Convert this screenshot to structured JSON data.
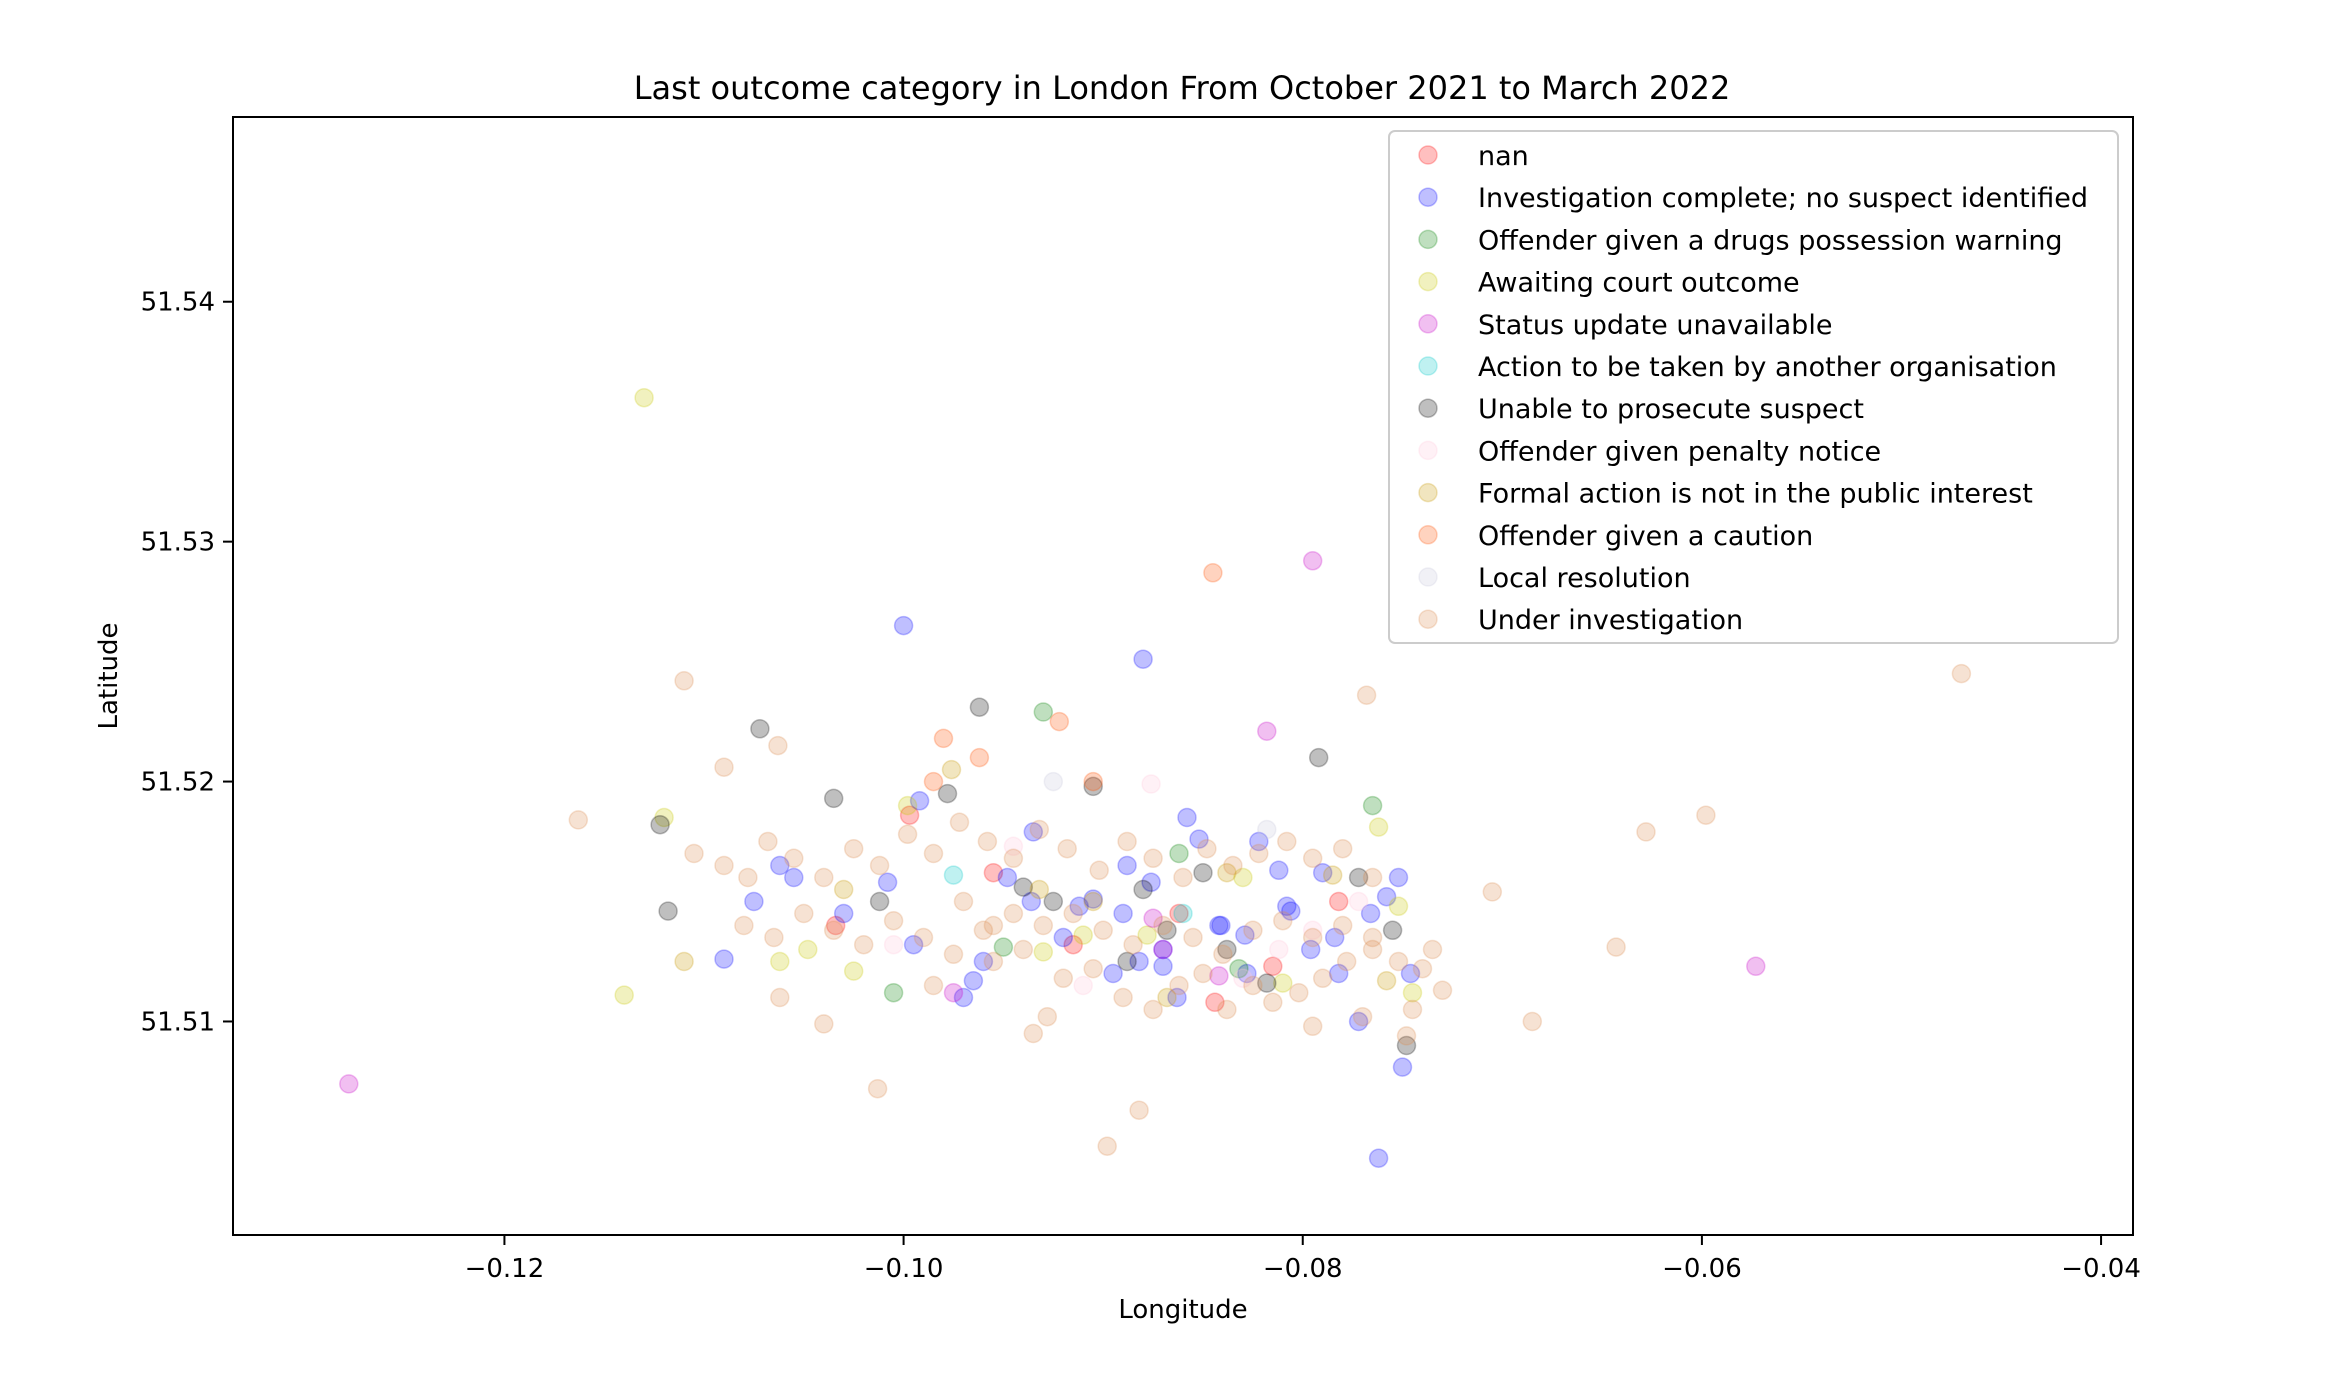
{
  "chart_data": {
    "type": "scatter",
    "title": "Last outcome category in London From October 2021 to March 2022",
    "xlabel": "Longitude",
    "ylabel": "Latitude",
    "xlim": [
      -0.1336,
      -0.0384
    ],
    "ylim": [
      51.5011,
      51.5477
    ],
    "xticks": [
      -0.12,
      -0.1,
      -0.08,
      -0.06,
      -0.04
    ],
    "xtick_labels": [
      "−0.12",
      "−0.10",
      "−0.08",
      "−0.06",
      "−0.04"
    ],
    "yticks": [
      51.51,
      51.52,
      51.53,
      51.54
    ],
    "ytick_labels": [
      "51.51",
      "51.52",
      "51.53",
      "51.54"
    ],
    "grid": false,
    "legend_position": "top-right",
    "marker_opacity": 0.25,
    "series": [
      {
        "name": "nan",
        "color": "#ff0000",
        "points": [
          [
            -0.0997,
            51.5186
          ],
          [
            -0.0915,
            51.5132
          ],
          [
            -0.0862,
            51.5145
          ],
          [
            -0.0844,
            51.5108
          ],
          [
            -0.0815,
            51.5123
          ],
          [
            -0.0782,
            51.515
          ],
          [
            -0.0955,
            51.5162
          ],
          [
            -0.1034,
            51.514
          ]
        ]
      },
      {
        "name": "Investigation complete; no suspect identified",
        "color": "#0000ff",
        "points": [
          [
            -0.1,
            51.5265
          ],
          [
            -0.088,
            51.5251
          ],
          [
            -0.0762,
            51.5043
          ],
          [
            -0.075,
            51.5081
          ],
          [
            -0.109,
            51.5126
          ],
          [
            -0.1075,
            51.515
          ],
          [
            -0.1062,
            51.5165
          ],
          [
            -0.1055,
            51.516
          ],
          [
            -0.103,
            51.5145
          ],
          [
            -0.1008,
            51.5158
          ],
          [
            -0.0995,
            51.5132
          ],
          [
            -0.097,
            51.511
          ],
          [
            -0.096,
            51.5125
          ],
          [
            -0.0948,
            51.516
          ],
          [
            -0.0935,
            51.5179
          ],
          [
            -0.092,
            51.5135
          ],
          [
            -0.0912,
            51.5148
          ],
          [
            -0.0905,
            51.5151
          ],
          [
            -0.0895,
            51.512
          ],
          [
            -0.0888,
            51.5165
          ],
          [
            -0.0882,
            51.5125
          ],
          [
            -0.0876,
            51.5158
          ],
          [
            -0.087,
            51.513
          ],
          [
            -0.0858,
            51.5185
          ],
          [
            -0.0852,
            51.5176
          ],
          [
            -0.0842,
            51.514
          ],
          [
            -0.0828,
            51.512
          ],
          [
            -0.0822,
            51.5175
          ],
          [
            -0.0812,
            51.5163
          ],
          [
            -0.0806,
            51.5146
          ],
          [
            -0.0796,
            51.513
          ],
          [
            -0.079,
            51.5162
          ],
          [
            -0.0782,
            51.512
          ],
          [
            -0.0772,
            51.51
          ],
          [
            -0.0766,
            51.5145
          ],
          [
            -0.0758,
            51.5152
          ],
          [
            -0.0752,
            51.516
          ],
          [
            -0.0746,
            51.512
          ],
          [
            -0.0936,
            51.515
          ],
          [
            -0.0992,
            51.5192
          ],
          [
            -0.0965,
            51.5117
          ],
          [
            -0.089,
            51.5145
          ],
          [
            -0.087,
            51.5123
          ],
          [
            -0.0863,
            51.511
          ],
          [
            -0.0841,
            51.514
          ],
          [
            -0.0829,
            51.5136
          ],
          [
            -0.0808,
            51.5148
          ],
          [
            -0.0784,
            51.5135
          ]
        ]
      },
      {
        "name": "Offender given a drugs possession warning",
        "color": "#008000",
        "points": [
          [
            -0.093,
            51.5229
          ],
          [
            -0.0765,
            51.519
          ],
          [
            -0.1005,
            51.5112
          ],
          [
            -0.095,
            51.5131
          ],
          [
            -0.0862,
            51.517
          ],
          [
            -0.0832,
            51.5122
          ]
        ]
      },
      {
        "name": "Awaiting court outcome",
        "color": "#c8c800",
        "points": [
          [
            -0.113,
            51.536
          ],
          [
            -0.114,
            51.5111
          ],
          [
            -0.112,
            51.5185
          ],
          [
            -0.1062,
            51.5125
          ],
          [
            -0.1048,
            51.513
          ],
          [
            -0.1025,
            51.5121
          ],
          [
            -0.0998,
            51.519
          ],
          [
            -0.093,
            51.5129
          ],
          [
            -0.0878,
            51.5136
          ],
          [
            -0.0762,
            51.5181
          ],
          [
            -0.0752,
            51.5148
          ],
          [
            -0.0745,
            51.5112
          ],
          [
            -0.083,
            51.516
          ],
          [
            -0.091,
            51.5136
          ],
          [
            -0.081,
            51.5116
          ]
        ]
      },
      {
        "name": "Status update unavailable",
        "color": "#c800c8",
        "points": [
          [
            -0.1278,
            51.5074
          ],
          [
            -0.0795,
            51.5292
          ],
          [
            -0.0818,
            51.5221
          ],
          [
            -0.0573,
            51.5123
          ],
          [
            -0.0975,
            51.5112
          ],
          [
            -0.0875,
            51.5143
          ],
          [
            -0.087,
            51.513
          ],
          [
            -0.0842,
            51.5119
          ]
        ]
      },
      {
        "name": "Action to be taken by another organisation",
        "color": "#00c8c8",
        "points": [
          [
            -0.086,
            51.5145
          ],
          [
            -0.0975,
            51.5161
          ]
        ]
      },
      {
        "name": "Unable to prosecute suspect",
        "color": "#000000",
        "points": [
          [
            -0.1122,
            51.5182
          ],
          [
            -0.1118,
            51.5146
          ],
          [
            -0.1072,
            51.5222
          ],
          [
            -0.1035,
            51.5193
          ],
          [
            -0.1012,
            51.515
          ],
          [
            -0.0978,
            51.5195
          ],
          [
            -0.0962,
            51.5231
          ],
          [
            -0.094,
            51.5156
          ],
          [
            -0.0905,
            51.5198
          ],
          [
            -0.0888,
            51.5125
          ],
          [
            -0.0868,
            51.5138
          ],
          [
            -0.085,
            51.5162
          ],
          [
            -0.0838,
            51.513
          ],
          [
            -0.0818,
            51.5116
          ],
          [
            -0.0792,
            51.521
          ],
          [
            -0.0772,
            51.516
          ],
          [
            -0.0755,
            51.5138
          ],
          [
            -0.0748,
            51.509
          ],
          [
            -0.088,
            51.5155
          ],
          [
            -0.0925,
            51.515
          ]
        ]
      },
      {
        "name": "Offender given penalty notice",
        "color": "#ffc8dc",
        "points": [
          [
            -0.0945,
            51.5173
          ],
          [
            -0.091,
            51.5115
          ],
          [
            -0.0876,
            51.5199
          ],
          [
            -0.083,
            51.5118
          ],
          [
            -0.0812,
            51.513
          ],
          [
            -0.0795,
            51.5138
          ],
          [
            -0.0772,
            51.515
          ],
          [
            -0.1005,
            51.5132
          ]
        ]
      },
      {
        "name": "Formal action is not in the public interest",
        "color": "#c89600",
        "points": [
          [
            -0.103,
            51.5155
          ],
          [
            -0.0976,
            51.5205
          ],
          [
            -0.0932,
            51.5155
          ],
          [
            -0.0868,
            51.511
          ],
          [
            -0.0785,
            51.5161
          ],
          [
            -0.0758,
            51.5117
          ],
          [
            -0.0838,
            51.5162
          ],
          [
            -0.0905,
            51.515
          ],
          [
            -0.111,
            51.5125
          ]
        ]
      },
      {
        "name": "Offender given a caution",
        "color": "#ff5000",
        "points": [
          [
            -0.0845,
            51.5287
          ],
          [
            -0.0985,
            51.52
          ],
          [
            -0.098,
            51.5218
          ],
          [
            -0.0962,
            51.521
          ],
          [
            -0.0922,
            51.5225
          ],
          [
            -0.0905,
            51.52
          ]
        ]
      },
      {
        "name": "Local resolution",
        "color": "#c8c8dc",
        "points": [
          [
            -0.0925,
            51.52
          ],
          [
            -0.0818,
            51.518
          ]
        ]
      },
      {
        "name": "Under investigation",
        "color": "#dc8c50",
        "points": [
          [
            -0.111,
            51.5242
          ],
          [
            -0.1063,
            51.5215
          ],
          [
            -0.109,
            51.5206
          ],
          [
            -0.1163,
            51.5184
          ],
          [
            -0.1013,
            51.5072
          ],
          [
            -0.0898,
            51.5048
          ],
          [
            -0.0882,
            51.5063
          ],
          [
            -0.0768,
            51.5236
          ],
          [
            -0.0705,
            51.5154
          ],
          [
            -0.0685,
            51.51
          ],
          [
            -0.0643,
            51.5131
          ],
          [
            -0.0628,
            51.5179
          ],
          [
            -0.0598,
            51.5186
          ],
          [
            -0.047,
            51.5245
          ],
          [
            -0.0748,
            51.5094
          ],
          [
            -0.104,
            51.5099
          ],
          [
            -0.1062,
            51.511
          ],
          [
            -0.0955,
            51.5125
          ],
          [
            -0.0935,
            51.5095
          ],
          [
            -0.0928,
            51.5102
          ],
          [
            -0.0795,
            51.5098
          ],
          [
            -0.077,
            51.5102
          ],
          [
            -0.0745,
            51.5105
          ],
          [
            -0.0735,
            51.513
          ],
          [
            -0.0985,
            51.5115
          ],
          [
            -0.097,
            51.515
          ],
          [
            -0.0955,
            51.514
          ],
          [
            -0.094,
            51.513
          ],
          [
            -0.092,
            51.5118
          ],
          [
            -0.0905,
            51.5122
          ],
          [
            -0.089,
            51.511
          ],
          [
            -0.0875,
            51.5105
          ],
          [
            -0.0862,
            51.5115
          ],
          [
            -0.085,
            51.512
          ],
          [
            -0.0838,
            51.5105
          ],
          [
            -0.0825,
            51.5115
          ],
          [
            -0.0815,
            51.5108
          ],
          [
            -0.0802,
            51.5112
          ],
          [
            -0.079,
            51.5118
          ],
          [
            -0.0778,
            51.5125
          ],
          [
            -0.0765,
            51.513
          ],
          [
            -0.0752,
            51.5125
          ],
          [
            -0.074,
            51.5122
          ],
          [
            -0.073,
            51.5113
          ],
          [
            -0.1105,
            51.517
          ],
          [
            -0.109,
            51.5165
          ],
          [
            -0.1078,
            51.516
          ],
          [
            -0.1068,
            51.5175
          ],
          [
            -0.1055,
            51.5168
          ],
          [
            -0.104,
            51.516
          ],
          [
            -0.1025,
            51.5172
          ],
          [
            -0.1012,
            51.5165
          ],
          [
            -0.0998,
            51.5178
          ],
          [
            -0.0985,
            51.517
          ],
          [
            -0.0972,
            51.5183
          ],
          [
            -0.0958,
            51.5175
          ],
          [
            -0.0945,
            51.5168
          ],
          [
            -0.0932,
            51.518
          ],
          [
            -0.0918,
            51.5172
          ],
          [
            -0.0902,
            51.5163
          ],
          [
            -0.0888,
            51.5175
          ],
          [
            -0.0875,
            51.5168
          ],
          [
            -0.086,
            51.516
          ],
          [
            -0.0848,
            51.5172
          ],
          [
            -0.0835,
            51.5165
          ],
          [
            -0.0822,
            51.517
          ],
          [
            -0.0808,
            51.5175
          ],
          [
            -0.0795,
            51.5168
          ],
          [
            -0.078,
            51.5172
          ],
          [
            -0.0765,
            51.516
          ],
          [
            -0.108,
            51.514
          ],
          [
            -0.1065,
            51.5135
          ],
          [
            -0.105,
            51.5145
          ],
          [
            -0.1035,
            51.5138
          ],
          [
            -0.102,
            51.5132
          ],
          [
            -0.1005,
            51.5142
          ],
          [
            -0.099,
            51.5135
          ],
          [
            -0.0975,
            51.5128
          ],
          [
            -0.096,
            51.5138
          ],
          [
            -0.0945,
            51.5145
          ],
          [
            -0.093,
            51.514
          ],
          [
            -0.0915,
            51.5145
          ],
          [
            -0.09,
            51.5138
          ],
          [
            -0.0885,
            51.5132
          ],
          [
            -0.087,
            51.514
          ],
          [
            -0.0855,
            51.5135
          ],
          [
            -0.084,
            51.5128
          ],
          [
            -0.0825,
            51.5138
          ],
          [
            -0.081,
            51.5142
          ],
          [
            -0.0795,
            51.5135
          ],
          [
            -0.078,
            51.514
          ],
          [
            -0.0765,
            51.5135
          ]
        ]
      }
    ]
  }
}
